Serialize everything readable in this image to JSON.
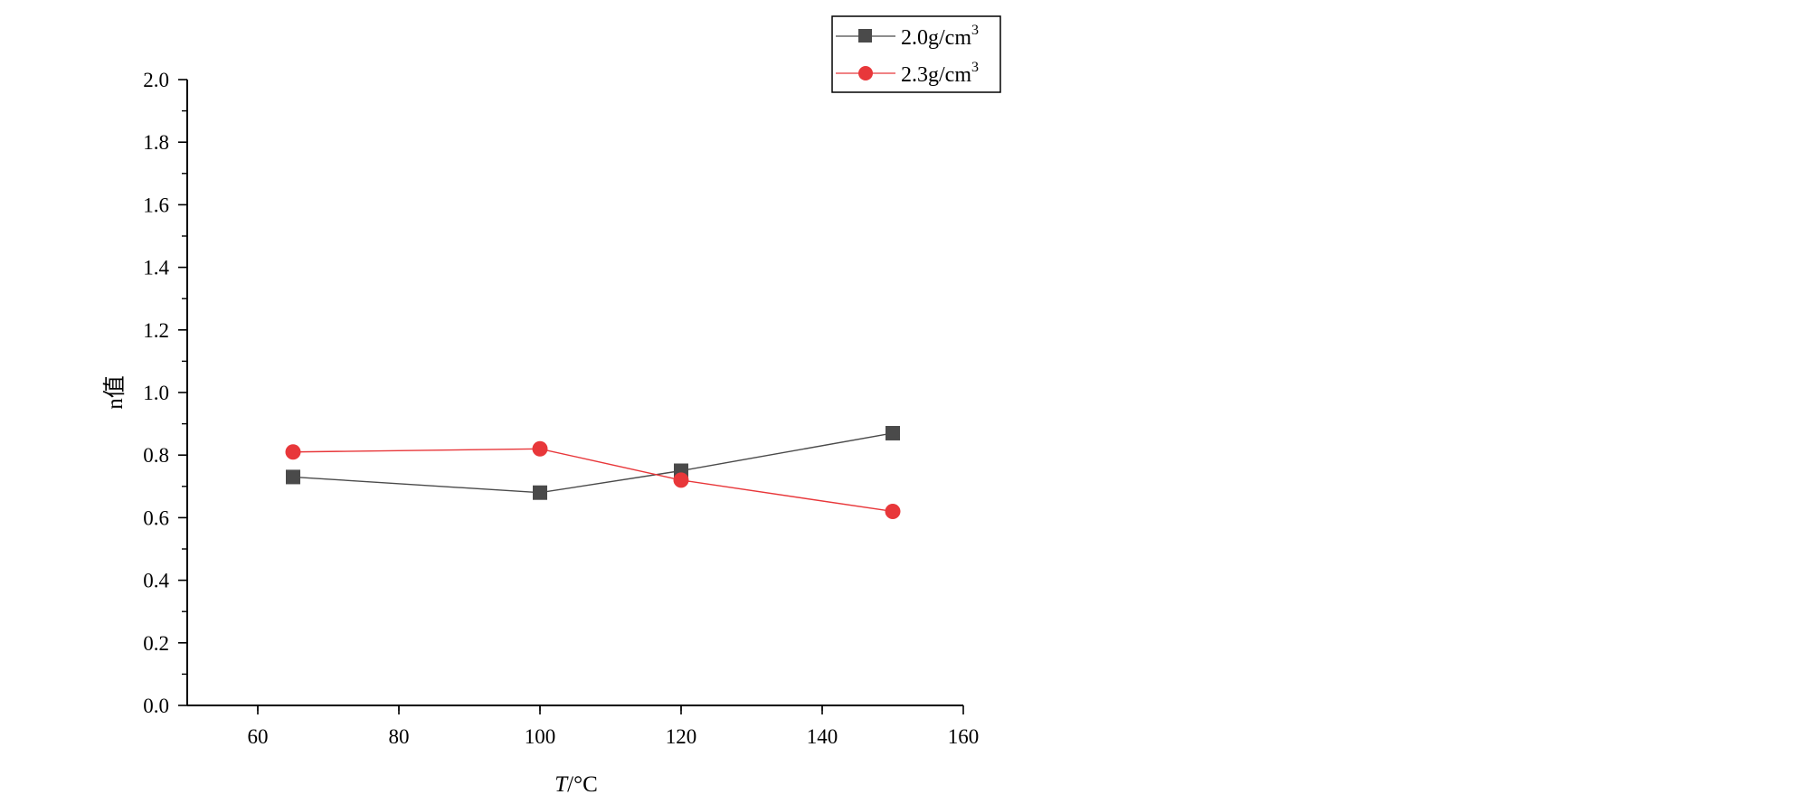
{
  "chart_data": {
    "type": "line",
    "title": "",
    "xlabel_italic": "T",
    "xlabel_rest": "/°C",
    "ylabel": "n值",
    "xlim": [
      50,
      160
    ],
    "ylim": [
      0.0,
      2.0
    ],
    "xticks": [
      "60",
      "80",
      "100",
      "120",
      "140",
      "160"
    ],
    "yticks": [
      "0.0",
      "0.2",
      "0.4",
      "0.6",
      "0.8",
      "1.0",
      "1.2",
      "1.4",
      "1.6",
      "1.8",
      "2.0"
    ],
    "grid": false,
    "legend_position": "top-right",
    "x": [
      65,
      100,
      120,
      150
    ],
    "series": [
      {
        "name_base": "2.0g/cm",
        "name_sup": "3",
        "marker": "square",
        "color": "#4a4a4a",
        "values": [
          0.73,
          0.68,
          0.75,
          0.87
        ]
      },
      {
        "name_base": "2.3g/cm",
        "name_sup": "3",
        "marker": "circle",
        "color": "#e8373a",
        "values": [
          0.81,
          0.82,
          0.72,
          0.62
        ]
      }
    ]
  }
}
